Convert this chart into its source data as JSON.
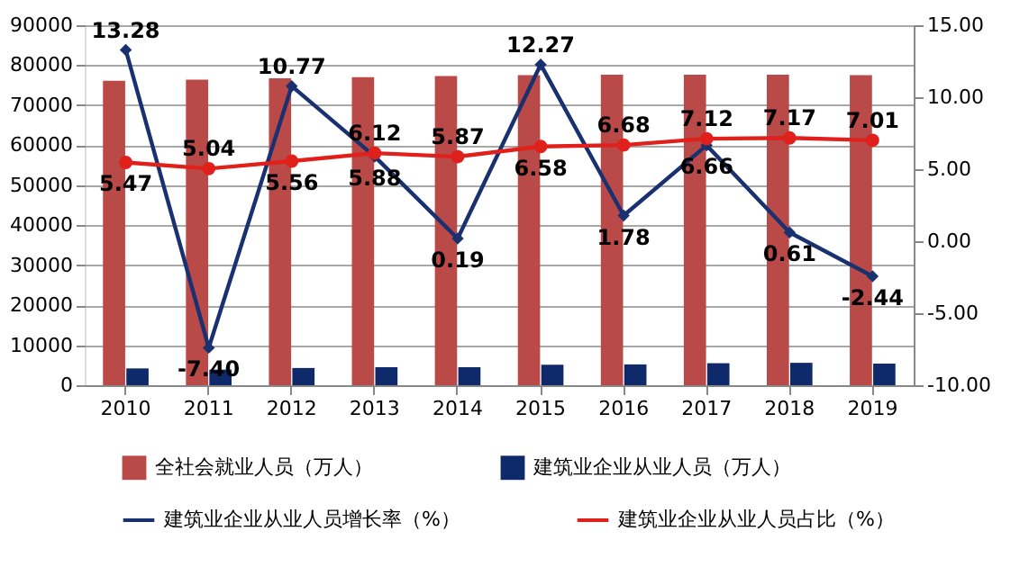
{
  "chart_data": {
    "type": "bar",
    "categories": [
      "2010",
      "2011",
      "2012",
      "2013",
      "2014",
      "2015",
      "2016",
      "2017",
      "2018",
      "2019"
    ],
    "series": [
      {
        "name": "全社会就业人员（万人）",
        "color": "#b94a48",
        "values": [
          76100,
          76400,
          76700,
          77000,
          77300,
          77500,
          77600,
          77600,
          77600,
          77500
        ]
      },
      {
        "name": "建筑业企业从业人员（万人）",
        "color": "#0f2a6b",
        "values": [
          4200,
          3900,
          4300,
          4500,
          4500,
          5100,
          5200,
          5500,
          5600,
          5400
        ]
      },
      {
        "name": "建筑业企业从业人员增长率（%）",
        "type": "line",
        "axis": "y2",
        "marker": "diamond",
        "color": "#1a3170",
        "values": [
          13.28,
          -7.4,
          10.77,
          5.88,
          0.19,
          12.27,
          1.78,
          6.66,
          0.61,
          -2.44
        ],
        "value_labels": [
          "13.28",
          "-7.40",
          "10.77",
          "5.88",
          "0.19",
          "12.27",
          "1.78",
          "6.66",
          "0.61",
          "-2.44"
        ]
      },
      {
        "name": "建筑业企业从业人员占比（%）",
        "type": "line",
        "axis": "y2",
        "marker": "circle",
        "color": "#e0201b",
        "values": [
          5.47,
          5.04,
          5.56,
          6.12,
          5.87,
          6.58,
          6.68,
          7.12,
          7.17,
          7.01
        ],
        "value_labels": [
          "5.47",
          "5.04",
          "5.56",
          "6.12",
          "5.87",
          "6.58",
          "6.68",
          "7.12",
          "7.17",
          "7.01"
        ]
      }
    ],
    "ylim": [
      0,
      90000
    ],
    "yticks": [
      0,
      10000,
      20000,
      30000,
      40000,
      50000,
      60000,
      70000,
      80000,
      90000
    ],
    "y2lim": [
      -10,
      15
    ],
    "y2ticks": [
      {
        "value": -10,
        "label": "-10.00"
      },
      {
        "value": -5,
        "label": "-5.00"
      },
      {
        "value": 0,
        "label": "0.00"
      },
      {
        "value": 5,
        "label": "5.00"
      },
      {
        "value": 10,
        "label": "10.00"
      },
      {
        "value": 15,
        "label": "15.00"
      }
    ],
    "grid": "y",
    "legend": "bottom"
  }
}
